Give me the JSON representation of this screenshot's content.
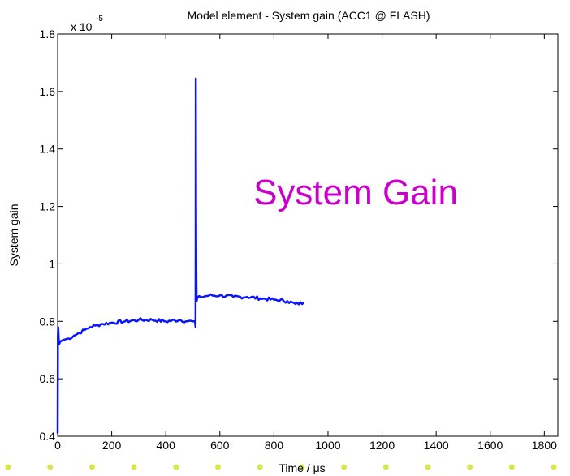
{
  "colors": {
    "line": "#0a14ff",
    "annotation": "#cc00cc",
    "dots": "#d8e84c",
    "axis": "#000000"
  },
  "chart_data": {
    "type": "line",
    "title": "Model element - System gain (ACC1 @ FLASH)",
    "xlabel": "Time / μs",
    "ylabel": "System gain",
    "y_multiplier_label": "x 10",
    "y_multiplier_exponent": "-5",
    "xlim": [
      0,
      1850
    ],
    "ylim": [
      0.4,
      1.8
    ],
    "x_ticks": [
      0,
      200,
      400,
      600,
      800,
      1000,
      1200,
      1400,
      1600,
      1800
    ],
    "y_ticks": [
      0.4,
      0.6,
      0.8,
      1.0,
      1.2,
      1.4,
      1.6,
      1.8
    ],
    "x_tick_labels": [
      "0",
      "200",
      "400",
      "600",
      "800",
      "1000",
      "1200",
      "1400",
      "1600",
      "1800"
    ],
    "y_tick_labels": [
      "0.4",
      "0.6",
      "0.8",
      "1",
      "1.2",
      "1.4",
      "1.6",
      "1.8"
    ],
    "grid": false,
    "annotation": "System Gain",
    "series": [
      {
        "x": [
          0,
          1,
          2,
          5,
          10,
          20,
          40,
          60,
          80,
          100,
          120,
          140,
          160,
          200,
          250,
          300,
          350,
          400,
          450,
          480,
          500,
          508,
          510,
          510.5,
          511,
          512,
          513,
          514,
          516,
          530,
          560,
          600,
          650,
          700,
          750,
          800,
          850,
          880,
          910
        ],
        "y": [
          0.41,
          0.75,
          0.78,
          0.72,
          0.73,
          0.735,
          0.74,
          0.75,
          0.76,
          0.77,
          0.78,
          0.785,
          0.79,
          0.795,
          0.8,
          0.805,
          0.805,
          0.8,
          0.805,
          0.8,
          0.8,
          0.8,
          0.78,
          1.0,
          1.645,
          1.2,
          0.95,
          0.87,
          0.88,
          0.885,
          0.89,
          0.89,
          0.885,
          0.885,
          0.88,
          0.875,
          0.87,
          0.86,
          0.865
        ]
      }
    ]
  }
}
